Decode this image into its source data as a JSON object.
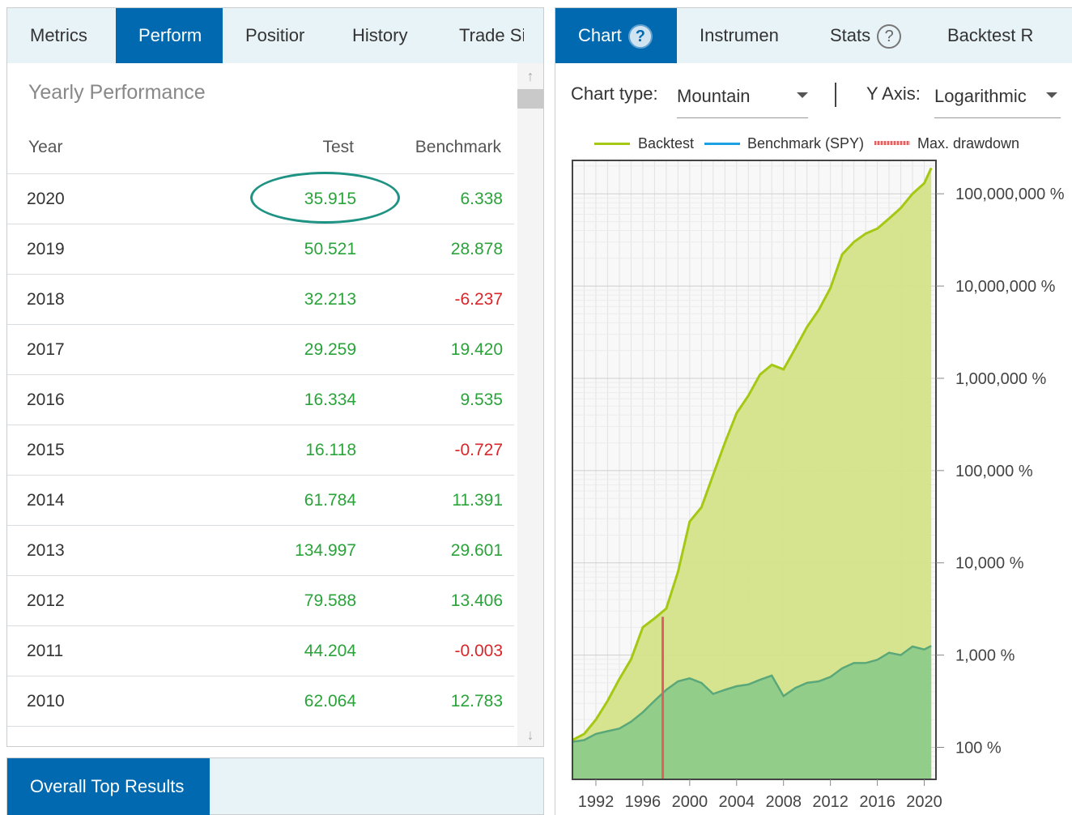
{
  "left": {
    "tabs": [
      {
        "label": "Metrics",
        "active": false
      },
      {
        "label": "Perform",
        "active": true
      },
      {
        "label": "Positior",
        "active": false
      },
      {
        "label": "History",
        "active": false
      },
      {
        "label": "Trade Si",
        "active": false
      }
    ],
    "section_title": "Yearly Performance",
    "columns": {
      "year": "Year",
      "test": "Test",
      "benchmark": "Benchmark"
    },
    "rows": [
      {
        "year": "2020",
        "test": "35.915",
        "benchmark": "6.338"
      },
      {
        "year": "2019",
        "test": "50.521",
        "benchmark": "28.878"
      },
      {
        "year": "2018",
        "test": "32.213",
        "benchmark": "-6.237"
      },
      {
        "year": "2017",
        "test": "29.259",
        "benchmark": "19.420"
      },
      {
        "year": "2016",
        "test": "16.334",
        "benchmark": "9.535"
      },
      {
        "year": "2015",
        "test": "16.118",
        "benchmark": "-0.727"
      },
      {
        "year": "2014",
        "test": "61.784",
        "benchmark": "11.391"
      },
      {
        "year": "2013",
        "test": "134.997",
        "benchmark": "29.601"
      },
      {
        "year": "2012",
        "test": "79.588",
        "benchmark": "13.406"
      },
      {
        "year": "2011",
        "test": "44.204",
        "benchmark": "-0.003"
      },
      {
        "year": "2010",
        "test": "62.064",
        "benchmark": "12.783"
      }
    ],
    "highlighted_row": 0,
    "scroll_up_icon": "arrow-up-icon",
    "scroll_down_icon": "arrow-down-icon"
  },
  "bottom": {
    "tab_label": "Overall Top Results"
  },
  "right": {
    "tabs": [
      {
        "label": "Chart",
        "active": true,
        "help": true
      },
      {
        "label": "Instrumen",
        "active": false,
        "help": false
      },
      {
        "label": "Stats",
        "active": false,
        "help": true
      },
      {
        "label": "Backtest R",
        "active": false,
        "help": false
      }
    ],
    "help_glyph": "?",
    "chart_type_label": "Chart type:",
    "chart_type_value": "Mountain",
    "y_axis_label": "Y Axis:",
    "y_axis_value": "Logarithmic",
    "legend": {
      "backtest": "Backtest",
      "benchmark": "Benchmark (SPY)",
      "drawdown": "Max. drawdown"
    }
  },
  "colors": {
    "accent": "#0069b0",
    "tabbar_bg": "#e8f3f7",
    "positive": "#2aa33a",
    "negative": "#d9262a",
    "backtest_line": "#a4c814",
    "backtest_fill": "#d4e38a",
    "benchmark_line": "#1ba1e2",
    "benchmark_fill": "#8fcb8a",
    "drawdown": "#e06060",
    "highlight_oval": "#1e9383"
  },
  "chart_data": {
    "type": "area",
    "title": "",
    "xlabel": "",
    "ylabel": "",
    "y_scale": "log",
    "x_ticks": [
      "1992",
      "1996",
      "2000",
      "2004",
      "2008",
      "2012",
      "2016",
      "2020"
    ],
    "y_ticks": [
      "100 %",
      "1,000 %",
      "10,000 %",
      "100,000 %",
      "1,000,000 %",
      "10,000,000 %",
      "100,000,000 %"
    ],
    "ylim": [
      45,
      230000000
    ],
    "xlim": [
      1990,
      2021
    ],
    "grid": true,
    "legend_position": "top",
    "series": [
      {
        "name": "Backtest",
        "x": [
          1990,
          1991,
          1992,
          1993,
          1994,
          1995,
          1996,
          1997,
          1998,
          1999,
          2000,
          2001,
          2002,
          2003,
          2004,
          2005,
          2006,
          2007,
          2008,
          2009,
          2010,
          2011,
          2012,
          2013,
          2014,
          2015,
          2016,
          2017,
          2018,
          2019,
          2020,
          2020.6
        ],
        "y": [
          120,
          140,
          200,
          320,
          550,
          900,
          2000,
          2500,
          3200,
          8000,
          28000,
          40000,
          90000,
          200000,
          420000,
          650000,
          1100000,
          1400000,
          1250000,
          2100000,
          3600000,
          5500000,
          9500000,
          22000000,
          30000000,
          37000000,
          42000000,
          54000000,
          70000000,
          100000000,
          130000000,
          190000000
        ]
      },
      {
        "name": "Benchmark (SPY)",
        "x": [
          1990,
          1991,
          1992,
          1993,
          1994,
          1995,
          1996,
          1997,
          1998,
          1999,
          2000,
          2001,
          2002,
          2003,
          2004,
          2005,
          2006,
          2007,
          2008,
          2009,
          2010,
          2011,
          2012,
          2013,
          2014,
          2015,
          2016,
          2017,
          2018,
          2019,
          2020,
          2020.6
        ],
        "y": [
          115,
          120,
          140,
          150,
          160,
          190,
          240,
          320,
          420,
          520,
          560,
          500,
          380,
          420,
          460,
          480,
          540,
          600,
          360,
          440,
          500,
          520,
          580,
          720,
          820,
          820,
          890,
          1060,
          1000,
          1240,
          1150,
          1260
        ]
      }
    ],
    "max_drawdown": {
      "x": 1997.7,
      "from": 50,
      "to": 2600
    }
  }
}
